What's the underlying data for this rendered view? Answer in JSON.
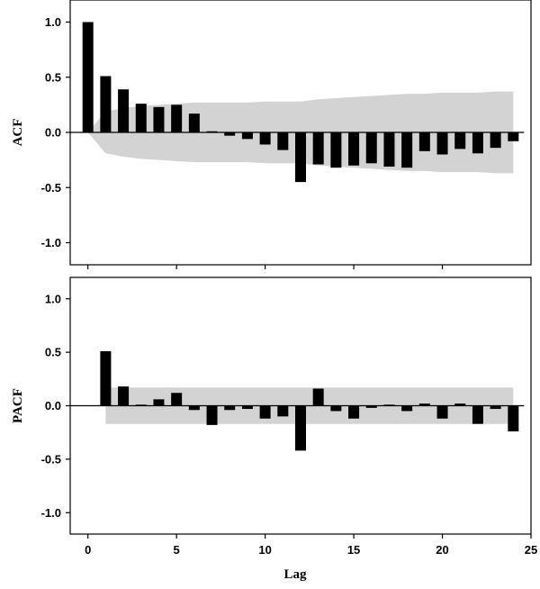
{
  "chart_data": [
    {
      "type": "bar",
      "ylabel": "ACF",
      "ylim": [
        -1.2,
        1.2
      ],
      "yticks": [
        1.0,
        0.5,
        0.0,
        -0.5,
        -1.0
      ],
      "ytick_labels": [
        "1.0",
        "0.5",
        "0.0",
        "-0.5",
        "-1.0"
      ],
      "xlim": [
        -1,
        25
      ],
      "xticks": [
        0,
        5,
        10,
        15,
        20
      ],
      "lags": [
        0,
        1,
        2,
        3,
        4,
        5,
        6,
        7,
        8,
        9,
        10,
        11,
        12,
        13,
        14,
        15,
        16,
        17,
        18,
        19,
        20,
        21,
        22,
        23,
        24
      ],
      "values": [
        1.0,
        0.51,
        0.39,
        0.26,
        0.23,
        0.25,
        0.17,
        0.01,
        -0.03,
        -0.06,
        -0.11,
        -0.16,
        -0.45,
        -0.29,
        -0.32,
        -0.3,
        -0.28,
        -0.31,
        -0.32,
        -0.17,
        -0.2,
        -0.15,
        -0.19,
        -0.14,
        -0.08
      ],
      "confidence_band": {
        "lags": [
          0,
          1,
          2,
          3,
          4,
          5,
          6,
          7,
          8,
          9,
          10,
          11,
          12,
          13,
          14,
          15,
          16,
          17,
          18,
          19,
          20,
          21,
          22,
          23,
          24
        ],
        "upper": [
          0.0,
          0.19,
          0.22,
          0.24,
          0.25,
          0.26,
          0.27,
          0.27,
          0.27,
          0.27,
          0.28,
          0.28,
          0.28,
          0.3,
          0.31,
          0.32,
          0.33,
          0.34,
          0.35,
          0.35,
          0.36,
          0.36,
          0.36,
          0.37,
          0.37
        ]
      },
      "bar_color": "#000000",
      "band_color": "#d3d3d3"
    },
    {
      "type": "bar",
      "ylabel": "PACF",
      "xlabel": "Lag",
      "ylim": [
        -1.2,
        1.2
      ],
      "yticks": [
        1.0,
        0.5,
        0.0,
        -0.5,
        -1.0
      ],
      "ytick_labels": [
        "1.0",
        "0.5",
        "0.0",
        "-0.5",
        "-1.0"
      ],
      "xlim": [
        -1,
        25
      ],
      "xticks": [
        0,
        5,
        10,
        15,
        20,
        25
      ],
      "xtick_labels": [
        "0",
        "5",
        "10",
        "15",
        "20",
        "25"
      ],
      "lags": [
        1,
        2,
        3,
        4,
        5,
        6,
        7,
        8,
        9,
        10,
        11,
        12,
        13,
        14,
        15,
        16,
        17,
        18,
        19,
        20,
        21,
        22,
        23,
        24
      ],
      "values": [
        0.51,
        0.18,
        0.01,
        0.06,
        0.12,
        -0.04,
        -0.18,
        -0.04,
        -0.03,
        -0.12,
        -0.1,
        -0.42,
        0.16,
        -0.05,
        -0.12,
        -0.02,
        0.01,
        -0.05,
        0.02,
        -0.12,
        0.02,
        -0.17,
        -0.03,
        -0.24
      ],
      "confidence_band": {
        "lag_start": 1,
        "lag_end": 24,
        "lower": -0.17,
        "upper": 0.17
      },
      "bar_color": "#000000",
      "band_color": "#d3d3d3"
    }
  ]
}
